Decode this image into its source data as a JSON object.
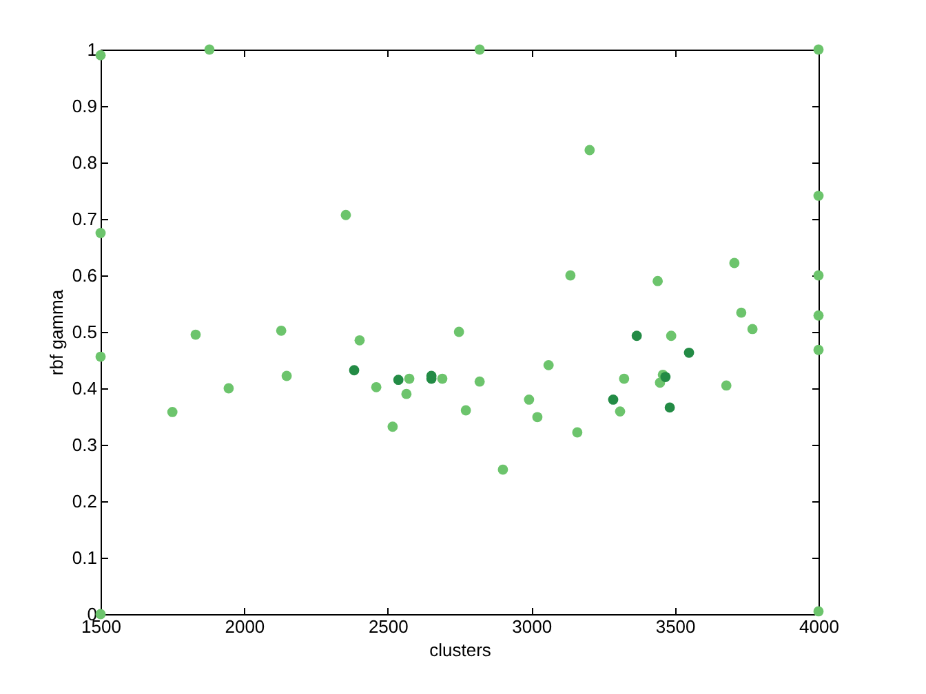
{
  "chart_data": {
    "type": "scatter",
    "xlabel": "clusters",
    "ylabel": "rbf gamma",
    "xlim": [
      1500,
      4000
    ],
    "xticks": [
      1500,
      2000,
      2500,
      3000,
      3500,
      4000
    ],
    "ylim": [
      0,
      1
    ],
    "yticks": [
      0,
      0.1,
      0.2,
      0.3,
      0.4,
      0.5,
      0.6,
      0.7,
      0.8,
      0.9,
      1
    ],
    "grid": false,
    "marker": "circle",
    "series": [
      {
        "color": "#6cc46c",
        "x": [
          1500,
          1500,
          1500,
          1500,
          1750,
          1831,
          1879,
          1946,
          2129,
          2148,
          2354,
          2402,
          2460,
          2517,
          2575,
          2565,
          2690,
          2748,
          2772,
          2820,
          2820,
          2901,
          2992,
          3021,
          3060,
          3136,
          3160,
          3203,
          3309,
          3323,
          3440,
          3448,
          3458,
          3487,
          3679,
          3707,
          3731,
          3770,
          4000,
          4000,
          4000,
          4000,
          4000,
          4000
        ],
        "values": [
          0.99,
          0.675,
          0.456,
          0.0,
          0.358,
          0.495,
          1.0,
          0.4,
          0.502,
          0.422,
          0.707,
          0.485,
          0.402,
          0.332,
          0.417,
          0.39,
          0.417,
          0.5,
          0.361,
          1.0,
          0.412,
          0.256,
          0.38,
          0.349,
          0.441,
          0.6,
          0.322,
          0.822,
          0.359,
          0.417,
          0.59,
          0.41,
          0.424,
          0.493,
          0.405,
          0.622,
          0.534,
          0.505,
          1.0,
          0.741,
          0.6,
          0.529,
          0.468,
          0.005
        ]
      },
      {
        "color": "#238b45",
        "x": [
          2383,
          2537,
          2652,
          2652,
          3285,
          3367,
          3467,
          3482,
          3549
        ],
        "values": [
          0.432,
          0.415,
          0.422,
          0.417,
          0.38,
          0.493,
          0.42,
          0.366,
          0.463
        ]
      }
    ]
  }
}
